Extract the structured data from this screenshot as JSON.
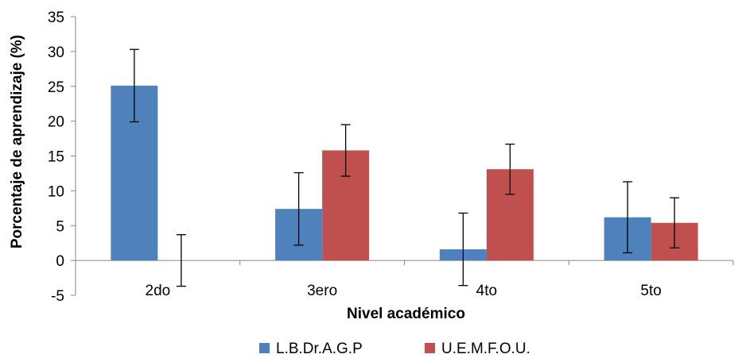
{
  "chart_data": {
    "type": "bar",
    "xlabel": "Nivel académico",
    "ylabel": "Porcentaje de aprendizaje (%)",
    "categories": [
      "2do",
      "3ero",
      "4to",
      "5to"
    ],
    "ylim": [
      -5,
      35
    ],
    "yticks": [
      -5,
      0,
      5,
      10,
      15,
      20,
      25,
      30,
      35
    ],
    "grid": false,
    "legend_position": "bottom",
    "series": [
      {
        "name": "L.B.Dr.A.G.P",
        "color": "#4f81bd",
        "values": [
          25.1,
          7.4,
          1.6,
          6.2
        ],
        "error": [
          5.2,
          5.2,
          5.2,
          5.1
        ]
      },
      {
        "name": "U.E.M.F.O.U.",
        "color": "#c0504d",
        "values": [
          0.0,
          15.8,
          13.1,
          5.4
        ],
        "error": [
          3.7,
          3.7,
          3.6,
          3.6
        ]
      }
    ]
  }
}
